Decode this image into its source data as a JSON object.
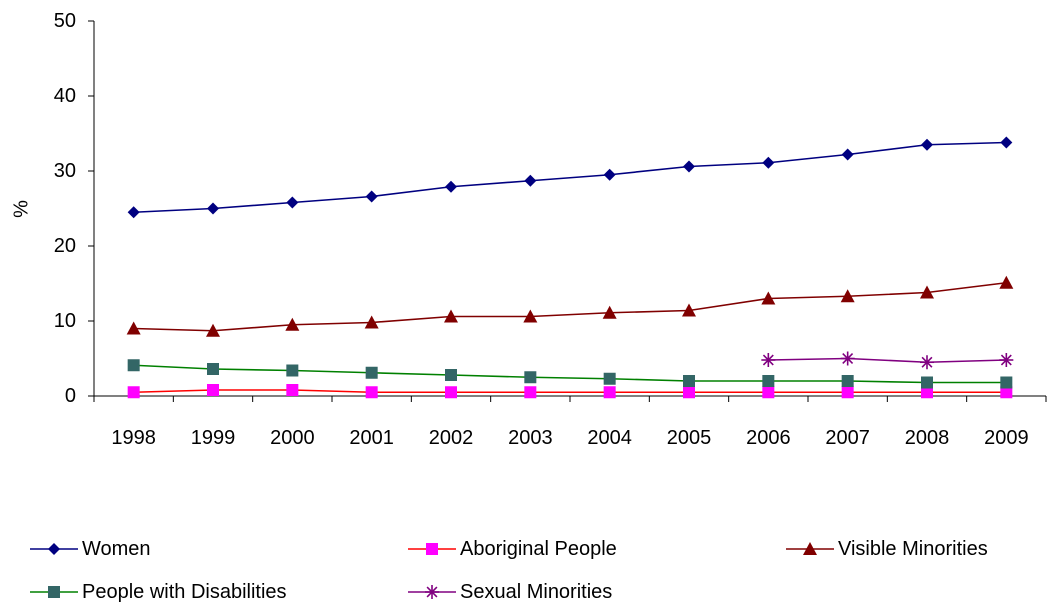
{
  "chart_data": {
    "type": "line",
    "title": "",
    "xlabel": "",
    "ylabel": "%",
    "ylim": [
      0,
      50
    ],
    "yticks": [
      0,
      10,
      20,
      30,
      40,
      50
    ],
    "grid": false,
    "legend_position": "bottom",
    "categories": [
      "1998",
      "1999",
      "2000",
      "2001",
      "2002",
      "2003",
      "2004",
      "2005",
      "2006",
      "2007",
      "2008",
      "2009"
    ],
    "series": [
      {
        "name": "Women",
        "color": "#000080",
        "marker": "diamond",
        "values": [
          24.5,
          25.0,
          25.8,
          26.6,
          27.9,
          28.7,
          29.5,
          30.6,
          31.1,
          32.2,
          33.5,
          33.8
        ]
      },
      {
        "name": "Aboriginal People",
        "color": "#FF0000",
        "marker_color": "#FF00FF",
        "marker": "square",
        "values": [
          0.5,
          0.8,
          0.8,
          0.5,
          0.5,
          0.5,
          0.5,
          0.5,
          0.5,
          0.5,
          0.5,
          0.5
        ]
      },
      {
        "name": "Visible Minorities",
        "color": "#800000",
        "marker": "triangle",
        "values": [
          9.0,
          8.7,
          9.5,
          9.8,
          10.6,
          10.6,
          11.1,
          11.4,
          13.0,
          13.3,
          13.8,
          15.1
        ]
      },
      {
        "name": "People with Disabilities",
        "color": "#008000",
        "marker_color": "#336666",
        "marker": "square",
        "values": [
          4.1,
          3.6,
          3.4,
          3.1,
          2.8,
          2.5,
          2.3,
          2.0,
          2.0,
          2.0,
          1.8,
          1.8
        ]
      },
      {
        "name": "Sexual Minorities",
        "color": "#800080",
        "marker": "star",
        "values": [
          null,
          null,
          null,
          null,
          null,
          null,
          null,
          null,
          4.8,
          5.0,
          4.5,
          4.8
        ]
      }
    ]
  }
}
